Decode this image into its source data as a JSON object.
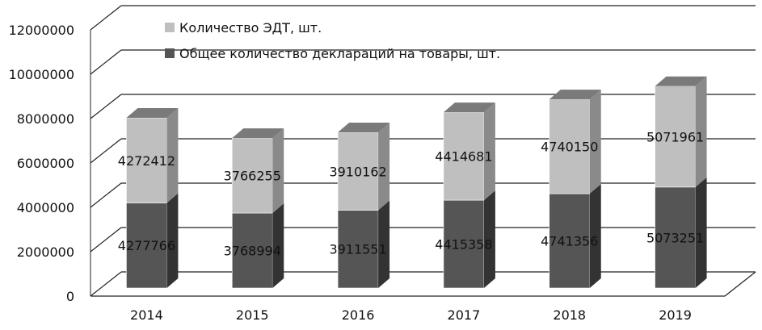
{
  "chart_data": {
    "type": "bar",
    "stacked": true,
    "three_d": true,
    "categories": [
      "2014",
      "2015",
      "2016",
      "2017",
      "2018",
      "2019"
    ],
    "series": [
      {
        "name": "Общее количество деклараций на товары, шт.",
        "values": [
          4277766,
          3768994,
          3911551,
          4415358,
          4741356,
          5073251
        ],
        "color": "#555555"
      },
      {
        "name": "Количество ЭДТ, шт.",
        "values": [
          4272412,
          3766255,
          3910162,
          4414681,
          4740150,
          5071961
        ],
        "color": "#bfbfbf"
      }
    ],
    "yticks": [
      "0",
      "2000000",
      "4000000",
      "6000000",
      "8000000",
      "10000000",
      "12000000"
    ],
    "ylim": [
      0,
      12000000
    ],
    "grid": true,
    "legend_position": "top-left",
    "title": "",
    "xlabel": "",
    "ylabel": ""
  }
}
